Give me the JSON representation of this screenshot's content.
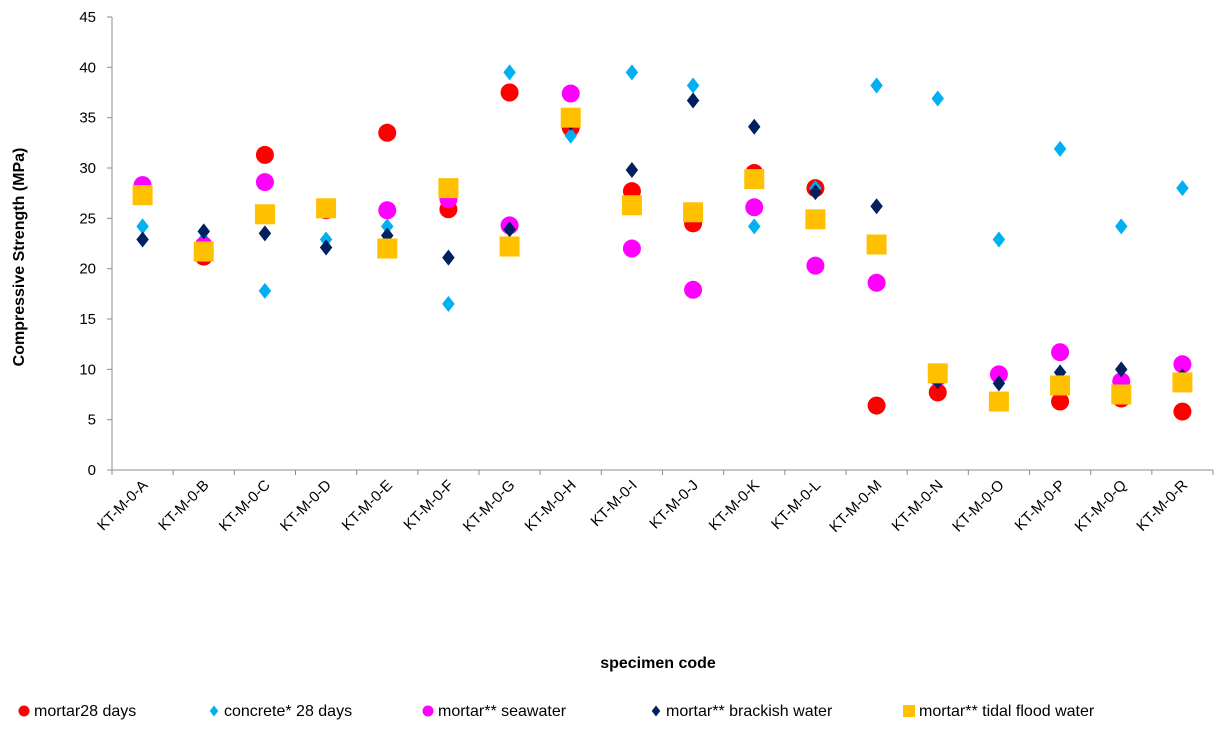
{
  "chart_data": {
    "type": "scatter",
    "title": "",
    "xlabel": "specimen code",
    "ylabel": "Compressive Strength (MPa)",
    "ylim": [
      0,
      45
    ],
    "yticks": [
      0,
      5,
      10,
      15,
      20,
      25,
      30,
      35,
      40,
      45
    ],
    "grid": false,
    "legend_position": "bottom",
    "categories": [
      "KT-M-0-A",
      "KT-M-0-B",
      "KT-M-0-C",
      "KT-M-0-D",
      "KT-M-0-E",
      "KT-M-0-F",
      "KT-M-0-G",
      "KT-M-0-H",
      "KT-M-0-I",
      "KT-M-0-J",
      "KT-M-0-K",
      "KT-M-0-L",
      "KT-M-0-M",
      "KT-M-0-N",
      "KT-M-0-O",
      "KT-M-0-P",
      "KT-M-0-Q",
      "KT-M-0-R"
    ],
    "series": [
      {
        "name": "mortar28 days",
        "color": "#ff0000",
        "marker": "circle",
        "values": [
          27.5,
          21.2,
          31.3,
          25.8,
          33.5,
          25.9,
          37.5,
          34.0,
          27.7,
          24.5,
          29.5,
          28.0,
          6.4,
          7.7,
          6.9,
          6.8,
          7.1,
          5.8
        ]
      },
      {
        "name": "concrete* 28 days",
        "color": "#00b0f0",
        "marker": "diamond",
        "values": [
          24.2,
          22.9,
          17.8,
          22.9,
          24.2,
          16.5,
          39.5,
          33.2,
          39.5,
          38.2,
          24.2,
          28.0,
          38.2,
          36.9,
          22.9,
          31.9,
          24.2,
          28.0
        ]
      },
      {
        "name": "mortar** seawater",
        "color": "#ff00ff",
        "marker": "circle",
        "values": [
          28.3,
          22.3,
          28.6,
          25.9,
          25.8,
          26.9,
          24.3,
          37.4,
          22.0,
          17.9,
          26.1,
          20.3,
          18.6,
          9.2,
          9.5,
          11.7,
          8.8,
          10.5
        ]
      },
      {
        "name": "mortar** brackish water",
        "color": "#002060",
        "marker": "diamond",
        "values": [
          22.9,
          23.7,
          23.5,
          22.1,
          23.3,
          21.1,
          23.9,
          34.5,
          29.8,
          36.7,
          34.1,
          27.6,
          26.2,
          8.8,
          8.6,
          9.7,
          10.0,
          9.3
        ]
      },
      {
        "name": "mortar** tidal flood water",
        "color": "#ffc000",
        "marker": "square",
        "values": [
          27.3,
          21.7,
          25.4,
          26.0,
          22.0,
          28.0,
          22.2,
          35.0,
          26.3,
          25.6,
          28.9,
          24.9,
          22.4,
          9.6,
          6.8,
          8.4,
          7.5,
          8.7
        ]
      }
    ]
  }
}
